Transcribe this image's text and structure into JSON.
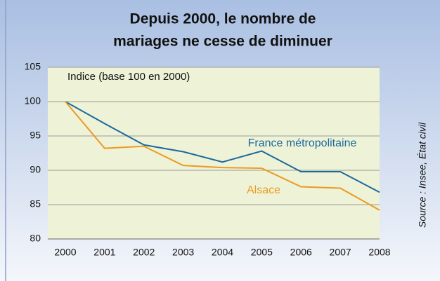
{
  "chart_data": {
    "type": "line",
    "title": [
      "Depuis 2000, le nombre de",
      "mariages ne cesse de diminuer"
    ],
    "annotation": "Indice (base 100 en 2000)",
    "source": "Source : Insee, État civil",
    "categories": [
      "2000",
      "2001",
      "2002",
      "2003",
      "2004",
      "2005",
      "2006",
      "2007",
      "2008"
    ],
    "series": [
      {
        "name": "France métropolitaine",
        "color": "#1b6a9c",
        "values": [
          100,
          96.8,
          93.7,
          92.7,
          91.2,
          92.8,
          89.8,
          89.8,
          86.8
        ]
      },
      {
        "name": "Alsace",
        "color": "#ec9a22",
        "values": [
          100,
          93.2,
          93.5,
          90.7,
          90.4,
          90.3,
          87.6,
          87.4,
          84.2
        ]
      }
    ],
    "ylim": [
      80,
      105
    ],
    "yticks": [
      80,
      85,
      90,
      95,
      100,
      105
    ],
    "grid": true
  }
}
